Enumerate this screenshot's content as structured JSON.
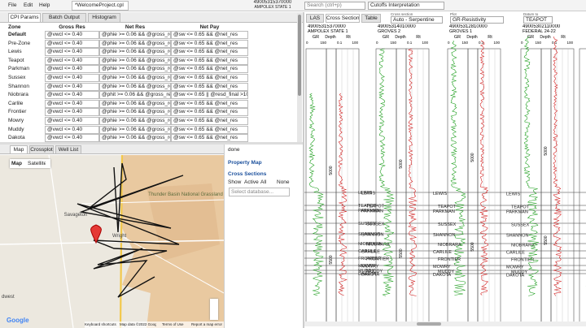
{
  "menu": [
    "File",
    "Edit",
    "Help"
  ],
  "document_tab": "*WelcomeProject.cpl",
  "well_header": {
    "uwi": "49005315370000",
    "name": "AMPOLEX STATE 1"
  },
  "search_placeholder": "Search (ctrl+p)",
  "workflow": "Cutoffs Interpretation",
  "params_tabs": [
    "CPI Params",
    "Batch Output",
    "Histogram"
  ],
  "table": {
    "columns": [
      "Zone",
      "Gross Res",
      "Net Res",
      "Net Pay"
    ],
    "rows": [
      [
        "Default",
        "@vwcl <= 0.40",
        "@phie >= 0.06 && @gross_res",
        "@sw <= 0.65 && @net_res"
      ],
      [
        "Pre-Zone",
        "@vwcl <= 0.40",
        "@phie >= 0.06 && @gross_res",
        "@sw <= 0.65 && @net_res"
      ],
      [
        "Lewis",
        "@vwcl <= 0.40",
        "@phie >= 0.06 && @gross_res",
        "@sw <= 0.65 && @net_res"
      ],
      [
        "Teapot",
        "@vwcl <= 0.40",
        "@phie >= 0.06 && @gross_res",
        "@sw <= 0.65 && @net_res"
      ],
      [
        "Parkman",
        "@vwcl <= 0.40",
        "@phie >= 0.06 && @gross_res",
        "@sw <= 0.65 && @net_res"
      ],
      [
        "Sussex",
        "@vwcl <= 0.40",
        "@phie >= 0.06 && @gross_res",
        "@sw <= 0.65 && @net_res"
      ],
      [
        "Shannon",
        "@vwcl <= 0.40",
        "@phie >= 0.06 && @gross_res",
        "@sw <= 0.65 && @net_res"
      ],
      [
        "Niobrara",
        "@vwcl <= 0.40",
        "@phit >= 0.06 && @gross_res",
        "@sw <= 0.65 || @resd_final >10"
      ],
      [
        "Carlile",
        "@vwcl <= 0.40",
        "@phie >= 0.06 && @gross_res",
        "@sw <= 0.65 && @net_res"
      ],
      [
        "Frontier",
        "@vwcl <= 0.40",
        "@phie >= 0.06 && @gross_res",
        "@sw <= 0.65 && @net_res"
      ],
      [
        "Mowry",
        "@vwcl <= 0.40",
        "@phie >= 0.06 && @gross_res",
        "@sw <= 0.65 && @net_res"
      ],
      [
        "Muddy",
        "@vwcl <= 0.40",
        "@phie >= 0.06 && @gross_res",
        "@sw <= 0.65 && @net_res"
      ],
      [
        "Dakota",
        "@vwcl <= 0.40",
        "@phie >= 0.06 && @gross_res",
        "@sw <= 0.65 && @net_res"
      ]
    ]
  },
  "map_tabs": [
    "Map",
    "Crossplot",
    "Well List"
  ],
  "map_types": [
    "Map",
    "Satellite"
  ],
  "map_labels": [
    "Thunder Basin National Grassland",
    "Savageton",
    "Wright",
    "dwest"
  ],
  "map_footer": [
    "Keyboard shortcuts",
    "Map data ©2022 Google",
    "Terms of Use",
    "Report a map error"
  ],
  "google": "Google",
  "status": "done",
  "sidebar": {
    "property_map": "Property Map",
    "cross_sections": "Cross Sections",
    "show": "Show",
    "options": [
      "Active",
      "All",
      "None"
    ],
    "database": "Select database..."
  },
  "xsec_tabs": [
    "LAS",
    "Cross Section",
    "Table"
  ],
  "controls": [
    {
      "label": "Cross section",
      "value": "Auto - Serpentine"
    },
    {
      "label": "Plot",
      "value": "GR-Resistivity"
    },
    {
      "label": "Datum to",
      "value": "TEAPOT"
    }
  ],
  "wells": [
    {
      "uwi": "49005315370000",
      "name": "AMPOLEX STATE 1"
    },
    {
      "uwi": "49005314010000",
      "name": "GROVES 2"
    },
    {
      "uwi": "49005312810000",
      "name": "GROVES 1"
    },
    {
      "uwi": "49005302110000",
      "name": "FEDERAL 24-22"
    }
  ],
  "tracks": {
    "gr": "GR",
    "gr_min": 0,
    "gr_max": 150,
    "depth": "Depth",
    "rt": "Rt",
    "rt_min": 0.1,
    "rt_max": 100
  },
  "depth_labels": [
    5000,
    5500
  ],
  "tops": [
    "LEWIS",
    "TEAPOT",
    "PARKMAN",
    "SUSSEX",
    "SHANNON",
    "NIOBRARA",
    "CARLILE",
    "FRONTIER",
    "MOWRY",
    "MUDDY",
    "DAKOTA"
  ]
}
